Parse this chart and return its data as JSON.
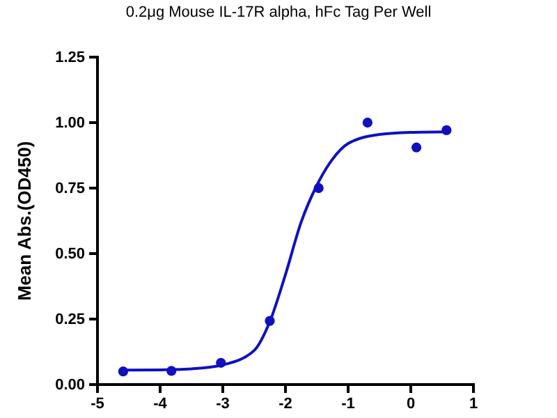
{
  "chart_data": {
    "type": "scatter",
    "title": "0.2μg Mouse IL-17R alpha, hFc Tag Per Well",
    "ylabel": "Mean Abs.(OD450)",
    "xlim": [
      -5,
      1
    ],
    "xticks": [
      -5,
      -4,
      -3,
      -2,
      -1,
      0,
      1
    ],
    "ylim": [
      0,
      1.25
    ],
    "yticks": [
      {
        "value": 0,
        "label": "0.00"
      },
      {
        "value": 0.25,
        "label": "0.25"
      },
      {
        "value": 0.5,
        "label": "0.50"
      },
      {
        "value": 0.75,
        "label": "0.75"
      },
      {
        "value": 1,
        "label": "1.00"
      },
      {
        "value": 1.25,
        "label": "1.25"
      }
    ],
    "grid": false,
    "series": [
      {
        "marker": "circle",
        "color": "#1010c0",
        "x": [
          -4.59,
          -3.82,
          -3.03,
          -2.25,
          -1.47,
          -0.69,
          0.09,
          0.57
        ],
        "values": [
          0.05,
          0.052,
          0.083,
          0.243,
          0.75,
          1.0,
          0.905,
          0.971
        ]
      },
      {
        "type": "line",
        "color": "#1010c0",
        "x": [
          -4.6,
          -4,
          -3.5,
          -3,
          -2.5,
          -2.25,
          -2,
          -1.75,
          -1.5,
          -1.25,
          -1,
          -0.5,
          0,
          0.57
        ],
        "values": [
          0.055,
          0.056,
          0.06,
          0.075,
          0.13,
          0.24,
          0.42,
          0.62,
          0.76,
          0.86,
          0.92,
          0.955,
          0.963,
          0.965
        ]
      }
    ]
  }
}
